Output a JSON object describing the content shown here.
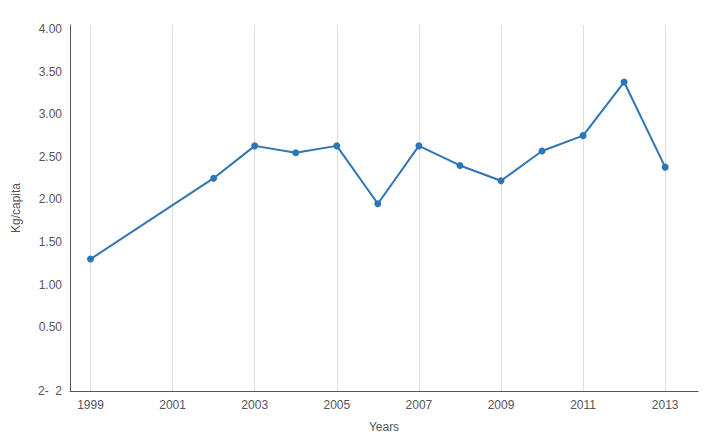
{
  "chart_data": {
    "type": "line",
    "x": [
      1999,
      2002,
      2003,
      2004,
      2005,
      2006,
      2007,
      2008,
      2009,
      2010,
      2011,
      2012,
      2013
    ],
    "values": [
      1.3,
      2.25,
      2.63,
      2.55,
      2.63,
      1.95,
      2.63,
      2.4,
      2.22,
      2.57,
      2.75,
      3.38,
      2.38
    ],
    "color": "#2E75B6",
    "marker": "circle",
    "xlabel": "Years",
    "ylabel": "Kg/capita",
    "xlim": [
      1998.5,
      2013.8
    ],
    "ylim": [
      -0.25,
      4.05
    ],
    "xticks": [
      1999,
      2001,
      2003,
      2005,
      2007,
      2009,
      2011,
      2013
    ],
    "yticks": [
      {
        "value": -0.25,
        "label": "2-  2"
      },
      {
        "value": 0.5,
        "label": "0.50"
      },
      {
        "value": 1.0,
        "label": "1.00"
      },
      {
        "value": 1.5,
        "label": "1.50"
      },
      {
        "value": 2.0,
        "label": "2.00"
      },
      {
        "value": 2.5,
        "label": "2.50"
      },
      {
        "value": 3.0,
        "label": "3.00"
      },
      {
        "value": 3.5,
        "label": "3.50"
      },
      {
        "value": 4.0,
        "label": "4.00"
      }
    ],
    "grid": "x"
  }
}
